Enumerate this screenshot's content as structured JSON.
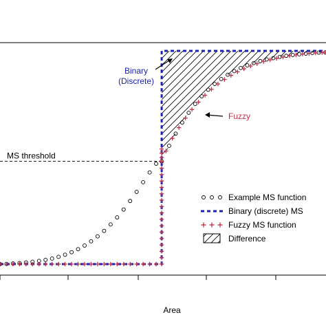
{
  "chart_data": {
    "type": "line",
    "title": "",
    "xlabel": "Area",
    "ylabel": "",
    "xlim": [
      0,
      1
    ],
    "ylim": [
      0,
      1
    ],
    "xtick_labels": [
      "",
      "",
      "",
      "",
      ""
    ],
    "grid": false,
    "threshold": {
      "label": "MS threshold",
      "x": 0.497,
      "y": 0.482
    },
    "series": [
      {
        "name": "Example MS function",
        "style": "points",
        "marker": "open-circle",
        "color": "#000000",
        "x": [
          0.0,
          0.02,
          0.04,
          0.06,
          0.08,
          0.1,
          0.12,
          0.14,
          0.16,
          0.18,
          0.2,
          0.22,
          0.24,
          0.26,
          0.28,
          0.3,
          0.32,
          0.34,
          0.36,
          0.38,
          0.4,
          0.42,
          0.44,
          0.46,
          0.48,
          0.497,
          0.52,
          0.54,
          0.56,
          0.58,
          0.6,
          0.62,
          0.64,
          0.66,
          0.68,
          0.7,
          0.72,
          0.74,
          0.76,
          0.78,
          0.8,
          0.82,
          0.84,
          0.86,
          0.88,
          0.9,
          0.92,
          0.94,
          0.96,
          0.98,
          1.0
        ],
        "y": [
          0.0,
          0.001,
          0.003,
          0.005,
          0.008,
          0.011,
          0.015,
          0.02,
          0.026,
          0.034,
          0.044,
          0.056,
          0.07,
          0.087,
          0.107,
          0.13,
          0.156,
          0.186,
          0.219,
          0.256,
          0.296,
          0.339,
          0.384,
          0.43,
          0.471,
          0.482,
          0.555,
          0.612,
          0.664,
          0.71,
          0.751,
          0.787,
          0.818,
          0.845,
          0.868,
          0.888,
          0.905,
          0.92,
          0.932,
          0.943,
          0.952,
          0.96,
          0.966,
          0.972,
          0.977,
          0.981,
          0.984,
          0.987,
          0.99,
          0.992,
          0.993
        ]
      },
      {
        "name": "Binary (discrete) MS",
        "style": "dashed-step",
        "color": "#1a22b0",
        "x": [
          0.0,
          0.497,
          0.497,
          1.0
        ],
        "y": [
          0.0,
          0.0,
          1.0,
          1.0
        ]
      },
      {
        "name": "Fuzzy MS function",
        "style": "points",
        "marker": "plus",
        "color": "#c0304a",
        "x": [
          0.0,
          0.02,
          0.04,
          0.06,
          0.08,
          0.1,
          0.12,
          0.14,
          0.16,
          0.18,
          0.2,
          0.22,
          0.24,
          0.26,
          0.28,
          0.3,
          0.32,
          0.34,
          0.36,
          0.38,
          0.4,
          0.42,
          0.44,
          0.46,
          0.48,
          0.497,
          0.497,
          0.497,
          0.497,
          0.497,
          0.497,
          0.497,
          0.497,
          0.497,
          0.497,
          0.497,
          0.497,
          0.497,
          0.497,
          0.497,
          0.497,
          0.497,
          0.497,
          0.497,
          0.497,
          0.497,
          0.51,
          0.53,
          0.55,
          0.57,
          0.59,
          0.61,
          0.63,
          0.65,
          0.67,
          0.69,
          0.71,
          0.73,
          0.75,
          0.77,
          0.79,
          0.81,
          0.83,
          0.85,
          0.87,
          0.89,
          0.91,
          0.93,
          0.95,
          0.97,
          0.99,
          1.0
        ],
        "y": [
          0.0,
          0.0,
          0.0,
          0.0,
          0.0,
          0.0,
          0.0,
          0.0,
          0.0,
          0.0,
          0.0,
          0.0,
          0.0,
          0.0,
          0.0,
          0.0,
          0.0,
          0.0,
          0.0,
          0.0,
          0.0,
          0.0,
          0.0,
          0.0,
          0.0,
          0.0,
          0.03,
          0.06,
          0.09,
          0.12,
          0.15,
          0.18,
          0.21,
          0.24,
          0.27,
          0.3,
          0.33,
          0.36,
          0.39,
          0.42,
          0.45,
          0.48,
          0.5,
          0.52,
          0.54,
          0.482,
          0.53,
          0.59,
          0.64,
          0.685,
          0.725,
          0.76,
          0.792,
          0.82,
          0.845,
          0.866,
          0.885,
          0.902,
          0.916,
          0.929,
          0.94,
          0.95,
          0.958,
          0.965,
          0.971,
          0.977,
          0.981,
          0.985,
          0.988,
          0.99,
          0.992,
          0.993
        ]
      }
    ],
    "difference_label": "Difference",
    "legend": {
      "placement": "bottom-right",
      "entries": [
        "Example MS function",
        "Binary (discrete) MS",
        "Fuzzy MS function",
        "Difference"
      ]
    },
    "annotations": [
      {
        "text": "Binary\n(Discrete)",
        "color": "#1a22b0",
        "target": "binary"
      },
      {
        "text": "Fuzzy",
        "color": "#c0304a",
        "target": "fuzzy"
      }
    ]
  }
}
